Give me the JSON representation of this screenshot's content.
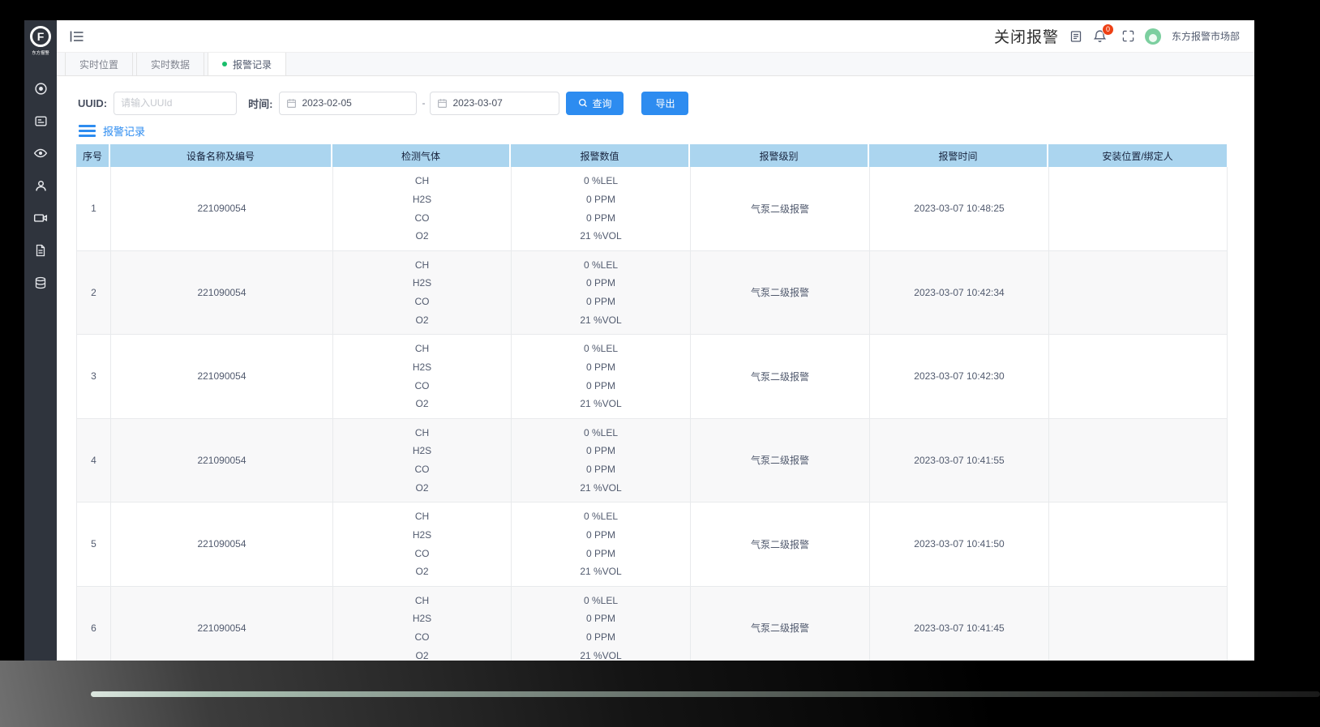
{
  "sidebar": {
    "logo_letter": "F",
    "logo_text": "东方报警",
    "items": [
      "target",
      "monitor",
      "eye",
      "user",
      "video",
      "file",
      "database"
    ]
  },
  "topbar": {
    "close_alarm_label": "关闭报警",
    "badge_count": "0",
    "username": "东方报警市场部"
  },
  "tabs": [
    {
      "label": "实时位置",
      "active": false
    },
    {
      "label": "实时数据",
      "active": false
    },
    {
      "label": "报警记录",
      "active": true
    }
  ],
  "filters": {
    "uuid_label": "UUID:",
    "uuid_placeholder": "请输入UUId",
    "time_label": "时间:",
    "date_from": "2023-02-05",
    "separator": "-",
    "date_to": "2023-03-07",
    "query_label": "查询",
    "export_label": "导出"
  },
  "section": {
    "title": "报警记录"
  },
  "table": {
    "headers": [
      "序号",
      "设备名称及编号",
      "检测气体",
      "报警数值",
      "报警级别",
      "报警时间",
      "安装位置/绑定人"
    ],
    "rows": [
      {
        "no": "1",
        "device": "221090054",
        "gases": [
          "CH",
          "H2S",
          "CO",
          "O2"
        ],
        "values": [
          "0 %LEL",
          "0 PPM",
          "0 PPM",
          "21 %VOL"
        ],
        "level": "气泵二级报警",
        "time": "2023-03-07 10:48:25",
        "location": ""
      },
      {
        "no": "2",
        "device": "221090054",
        "gases": [
          "CH",
          "H2S",
          "CO",
          "O2"
        ],
        "values": [
          "0 %LEL",
          "0 PPM",
          "0 PPM",
          "21 %VOL"
        ],
        "level": "气泵二级报警",
        "time": "2023-03-07 10:42:34",
        "location": ""
      },
      {
        "no": "3",
        "device": "221090054",
        "gases": [
          "CH",
          "H2S",
          "CO",
          "O2"
        ],
        "values": [
          "0 %LEL",
          "0 PPM",
          "0 PPM",
          "21 %VOL"
        ],
        "level": "气泵二级报警",
        "time": "2023-03-07 10:42:30",
        "location": ""
      },
      {
        "no": "4",
        "device": "221090054",
        "gases": [
          "CH",
          "H2S",
          "CO",
          "O2"
        ],
        "values": [
          "0 %LEL",
          "0 PPM",
          "0 PPM",
          "21 %VOL"
        ],
        "level": "气泵二级报警",
        "time": "2023-03-07 10:41:55",
        "location": ""
      },
      {
        "no": "5",
        "device": "221090054",
        "gases": [
          "CH",
          "H2S",
          "CO",
          "O2"
        ],
        "values": [
          "0 %LEL",
          "0 PPM",
          "0 PPM",
          "21 %VOL"
        ],
        "level": "气泵二级报警",
        "time": "2023-03-07 10:41:50",
        "location": ""
      },
      {
        "no": "6",
        "device": "221090054",
        "gases": [
          "CH",
          "H2S",
          "CO",
          "O2"
        ],
        "values": [
          "0 %LEL",
          "0 PPM",
          "0 PPM",
          "21 %VOL"
        ],
        "level": "气泵二级报警",
        "time": "2023-03-07 10:41:45",
        "location": ""
      }
    ]
  },
  "colors": {
    "accent": "#2d8cf0",
    "table_header_bg": "#abd5ef",
    "sidebar_bg": "#2f343d",
    "badge_red": "#ed4014",
    "active_dot_green": "#19be6b"
  }
}
